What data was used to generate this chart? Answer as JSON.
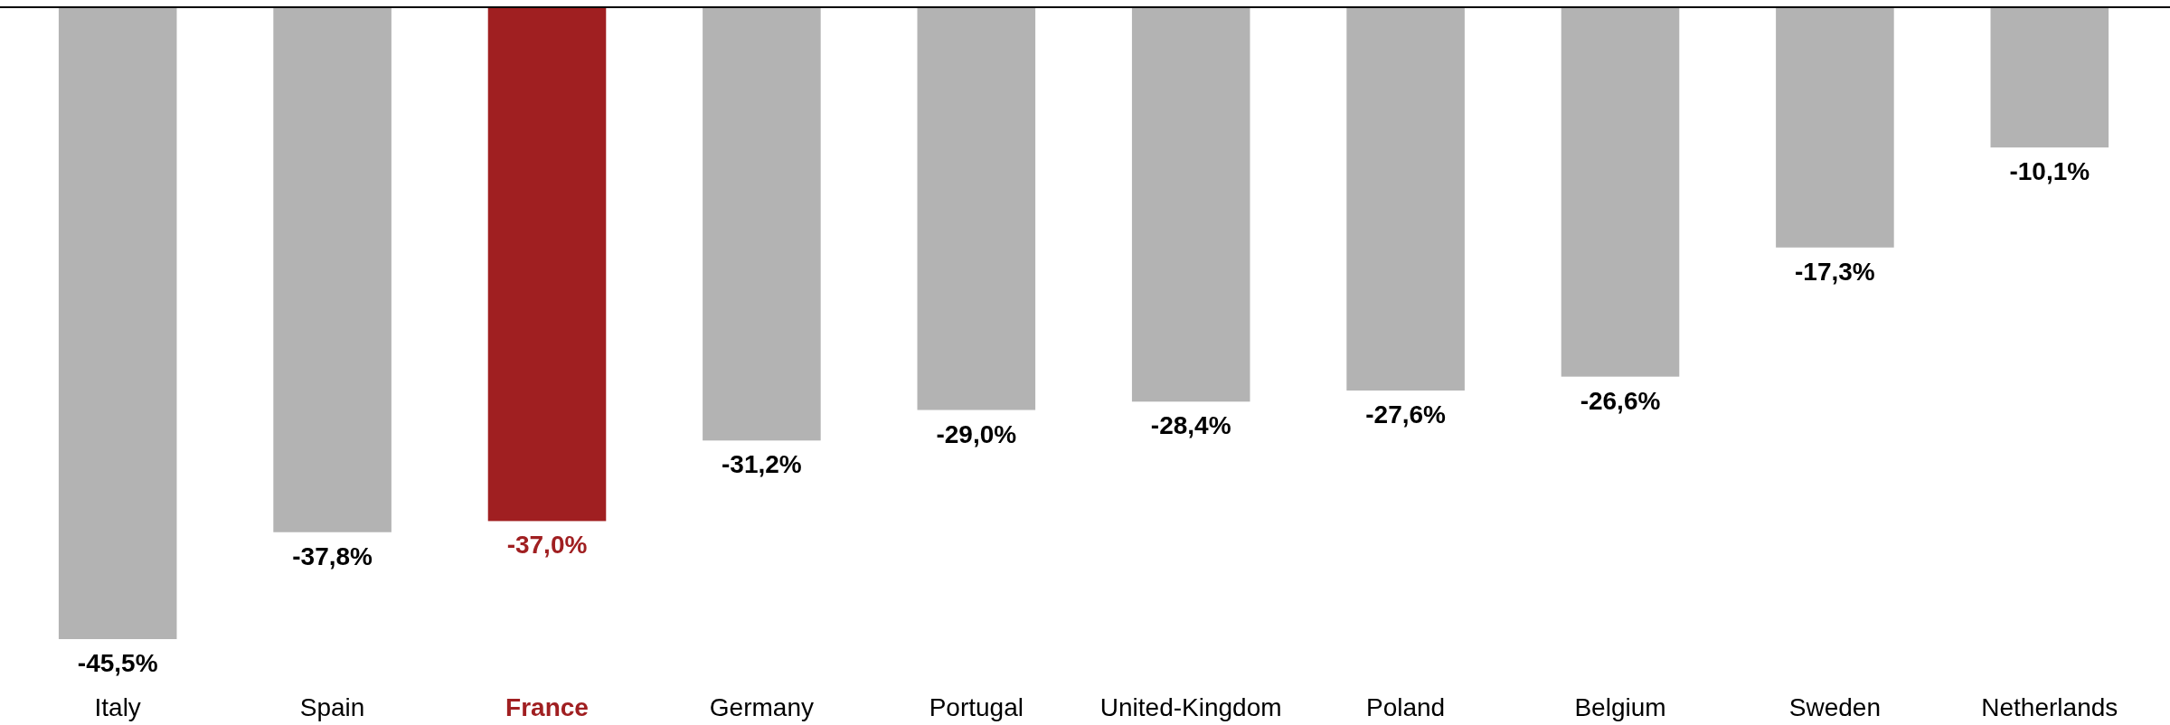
{
  "chart_data": {
    "type": "bar",
    "categories": [
      "Italy",
      "Spain",
      "France",
      "Germany",
      "Portugal",
      "United-Kingdom",
      "Poland",
      "Belgium",
      "Sweden",
      "Netherlands"
    ],
    "values": [
      -45.5,
      -37.8,
      -37.0,
      -31.2,
      -29.0,
      -28.4,
      -27.6,
      -26.6,
      -17.3,
      -10.1
    ],
    "colors": [
      "#b3b3b3",
      "#b3b3b3",
      "#a01f21",
      "#b3b3b3",
      "#b3b3b3",
      "#b3b3b3",
      "#b3b3b3",
      "#b3b3b3",
      "#b3b3b3",
      "#b3b3b3"
    ],
    "value_labels": [
      "-45,5%",
      "-37,8%",
      "-37,0%",
      "-31,2%",
      "-29,0%",
      "-28,4%",
      "-27,6%",
      "-26,6%",
      "-17,3%",
      "-10,1%"
    ]
  }
}
